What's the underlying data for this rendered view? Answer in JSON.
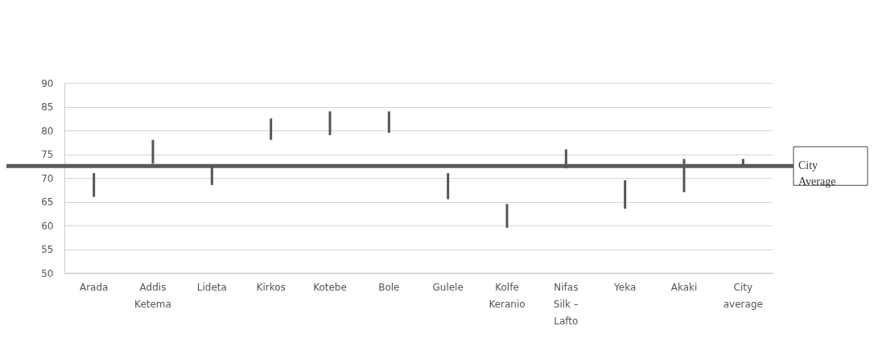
{
  "chart_data": {
    "type": "bar",
    "categories": [
      "Arada",
      "Addis Ketema",
      "Lideta",
      "Kirkos",
      "Kotebe",
      "Bole",
      "Gulele",
      "Kolfe Keranio",
      "Nifas Silk – Lafto",
      "Yeka",
      "Akaki",
      "City average"
    ],
    "base": [
      66,
      73,
      68.5,
      78,
      79,
      79.5,
      65.5,
      59.5,
      72,
      63.5,
      67,
      72.5
    ],
    "values": [
      5,
      5,
      4,
      4.5,
      5,
      4.5,
      5.5,
      5,
      4,
      6,
      7,
      1.5
    ],
    "color": "#555555",
    "ylim": [
      50,
      90
    ],
    "yticks": [
      50,
      55,
      60,
      65,
      70,
      75,
      80,
      85,
      90
    ],
    "grid": "y",
    "ref_lines": [
      {
        "axis": "y",
        "value": 72.5,
        "label": "City Average",
        "color": "#595959"
      }
    ]
  }
}
